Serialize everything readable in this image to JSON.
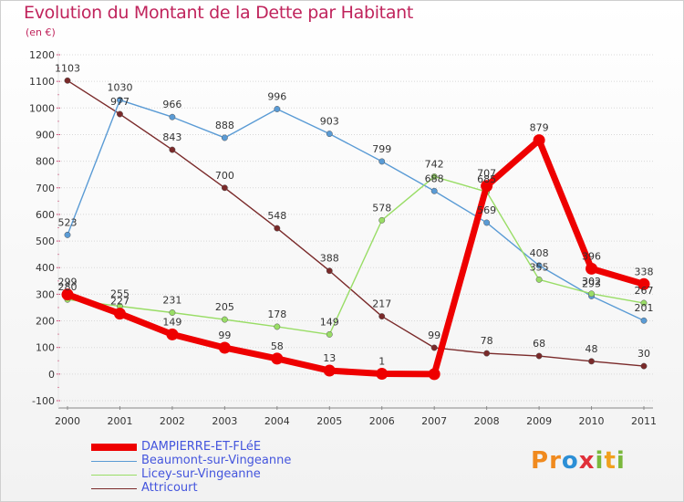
{
  "header": {
    "title": "Evolution du Montant de la Dette par Habitant",
    "subtitle": "(en €)"
  },
  "chart_data": {
    "type": "line",
    "title": "Evolution du Montant de la Dette par Habitant",
    "subtitle": "(en €)",
    "xlabel": "",
    "ylabel": "",
    "ylim": [
      -100,
      1200
    ],
    "yticks": [
      -100,
      0,
      100,
      200,
      300,
      400,
      500,
      600,
      700,
      800,
      900,
      1000,
      1100,
      1200
    ],
    "categories": [
      "2000",
      "2001",
      "2002",
      "2003",
      "2004",
      "2005",
      "2006",
      "2007",
      "2008",
      "2009",
      "2010",
      "2011"
    ],
    "grid": "horizontal",
    "legend_position": "bottom-left",
    "series": [
      {
        "name": "DAMPIERRE-ET-FLéE",
        "color": "#ee0000",
        "values": [
          299,
          227,
          149,
          99,
          58,
          13,
          1,
          0,
          707,
          879,
          396,
          338
        ],
        "labels": [
          "299",
          "227",
          "149",
          "99",
          "58",
          "13",
          "1",
          "",
          "707",
          "879",
          "396",
          "338"
        ]
      },
      {
        "name": "Beaumont-sur-Vingeanne",
        "color": "#5a9bd5",
        "values": [
          523,
          1030,
          966,
          888,
          996,
          903,
          799,
          688,
          569,
          408,
          293,
          201
        ],
        "labels": [
          "523",
          "1030",
          "966",
          "888",
          "996",
          "903",
          "799",
          "688",
          "569",
          "408",
          "293",
          "201"
        ]
      },
      {
        "name": "Licey-sur-Vingeanne",
        "color": "#99dd66",
        "values": [
          280,
          255,
          231,
          205,
          178,
          149,
          null,
          742,
          685,
          355,
          302,
          267
        ],
        "labels": [
          "280",
          "255",
          "231",
          "205",
          "178",
          "149",
          "",
          "742",
          "685",
          "355",
          "302",
          "267"
        ]
      },
      {
        "name": "Attricourt",
        "color": "#7a2a2a",
        "values": [
          1103,
          977,
          843,
          700,
          548,
          388,
          217,
          99,
          78,
          68,
          48,
          30
        ],
        "labels": [
          "1103",
          "977",
          "843",
          "700",
          "548",
          "388",
          "217",
          "99",
          "78",
          "68",
          "48",
          "30"
        ]
      }
    ],
    "series_fix": {
      "licey_2006": 578
    }
  },
  "logo": {
    "text": "Proxiti"
  }
}
